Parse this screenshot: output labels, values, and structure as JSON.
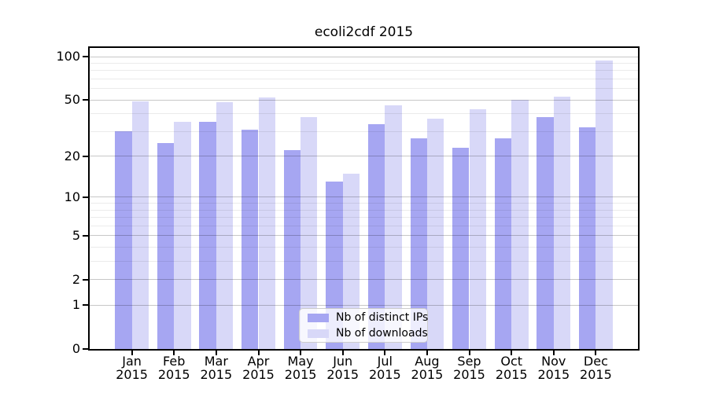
{
  "chart_data": {
    "type": "bar",
    "title": "ecoli2cdf 2015",
    "categories": [
      "Jan",
      "Feb",
      "Mar",
      "Apr",
      "May",
      "Jun",
      "Jul",
      "Aug",
      "Sep",
      "Oct",
      "Nov",
      "Dec"
    ],
    "year_label": "2015",
    "series": [
      {
        "name": "Nb of distinct IPs",
        "color": "#a6a6f2",
        "values": [
          30,
          25,
          35,
          31,
          22,
          13,
          34,
          27,
          23,
          27,
          38,
          32
        ]
      },
      {
        "name": "Nb of downloads",
        "color": "#d8d8f8",
        "values": [
          49,
          35,
          48,
          52,
          38,
          15,
          46,
          37,
          43,
          50,
          53,
          94
        ]
      }
    ],
    "xlabel": "",
    "ylabel": "",
    "yscale": "log1p",
    "ylim": [
      0,
      115
    ],
    "yticks": [
      0,
      1,
      2,
      5,
      10,
      20,
      50,
      100
    ],
    "minor_gridlines": [
      3,
      4,
      6,
      7,
      8,
      9,
      30,
      40,
      60,
      70,
      80,
      90
    ],
    "grid": true,
    "legend_position": "lower-center",
    "colors": {
      "background": "#ffffff",
      "axis": "#000000",
      "major_grid": "rgba(0,0,0,0.22)",
      "minor_grid": "rgba(0,0,0,0.08)",
      "legend_border": "#cccccc"
    }
  }
}
